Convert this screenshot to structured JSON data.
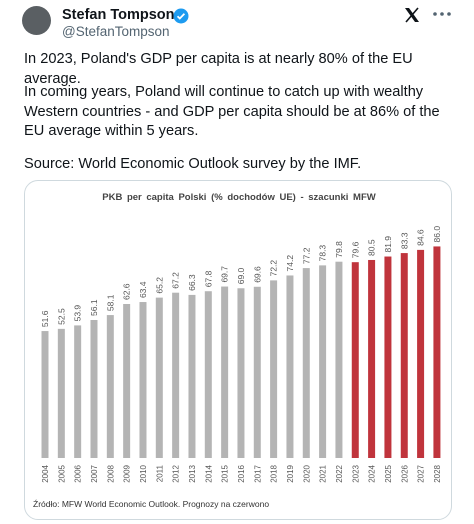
{
  "post": {
    "author": "Stefan Tompson",
    "handle": "@StefanTompson",
    "paragraphs": [
      "In 2023, Poland's GDP per capita is at nearly 80% of the EU average.",
      "In coming years, Poland will continue to catch up with wealthy Western countries - and GDP per capita should be at 86% of the EU average within 5 years.",
      "Source: World Economic Outlook survey by the IMF."
    ]
  },
  "chart_data": {
    "type": "bar",
    "title": "PKB per capita Polski (% dochodów UE) - szacunki MFW",
    "categories": [
      "2004",
      "2005",
      "2006",
      "2007",
      "2008",
      "2009",
      "2010",
      "2011",
      "2012",
      "2013",
      "2014",
      "2015",
      "2016",
      "2017",
      "2018",
      "2019",
      "2020",
      "2021",
      "2022",
      "2023",
      "2024",
      "2025",
      "2026",
      "2027",
      "2028"
    ],
    "values": [
      51.6,
      52.5,
      53.9,
      56.1,
      58.1,
      62.6,
      63.4,
      65.2,
      67.2,
      66.3,
      67.8,
      69.7,
      69.0,
      69.6,
      72.2,
      74.2,
      77.2,
      78.3,
      79.8,
      79.6,
      80.5,
      81.9,
      83.3,
      84.6,
      86.0
    ],
    "value_labels": [
      "51.6",
      "52.5",
      "53.9",
      "56.1",
      "58.1",
      "62.6",
      "63.4",
      "65.2",
      "67.2",
      "66.3",
      "67.8",
      "69.7",
      "69.0",
      "69.6",
      "72.2",
      "74.2",
      "77.2",
      "78.3",
      "79.8",
      "79.6",
      "80.5",
      "81.9",
      "83.3",
      "84.6",
      "86.0"
    ],
    "colors": [
      "#b4b4b4",
      "#b4b4b4",
      "#b4b4b4",
      "#b4b4b4",
      "#b4b4b4",
      "#b4b4b4",
      "#b4b4b4",
      "#b4b4b4",
      "#b4b4b4",
      "#b4b4b4",
      "#b4b4b4",
      "#b4b4b4",
      "#b4b4b4",
      "#b4b4b4",
      "#b4b4b4",
      "#b4b4b4",
      "#b4b4b4",
      "#b4b4b4",
      "#b4b4b4",
      "#c0343c",
      "#c0343c",
      "#c0343c",
      "#c0343c",
      "#c0343c",
      "#c0343c"
    ],
    "ylim": [
      0,
      100
    ],
    "source": "Źródło: MFW World Economic Outlook. Prognozy na czerwono"
  }
}
